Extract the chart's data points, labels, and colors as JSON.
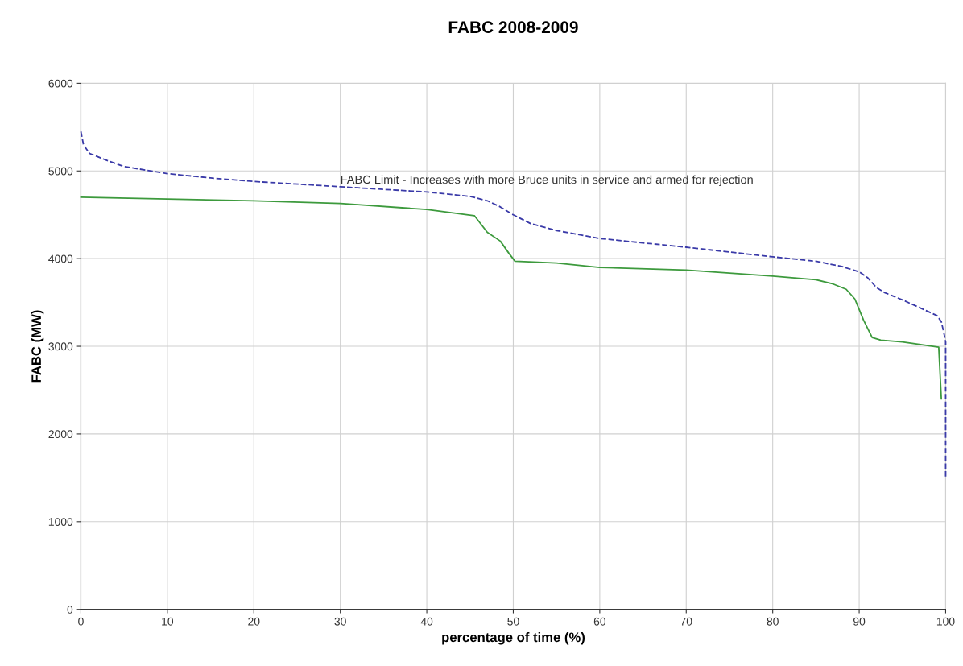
{
  "chart_data": {
    "type": "line",
    "title": "FABC 2008-2009",
    "xlabel": "percentage of time (%)",
    "ylabel": "FABC (MW)",
    "xlim": [
      0,
      100
    ],
    "xticks": [
      0,
      10,
      20,
      30,
      40,
      50,
      60,
      70,
      80,
      90,
      100
    ],
    "ylim": [
      0,
      6000
    ],
    "yticks": [
      0,
      1000,
      2000,
      3000,
      4000,
      5000,
      6000
    ],
    "grid": true,
    "legend": false,
    "annotations": [
      "FABC Limit - Increases with more Bruce units in service and armed for rejection"
    ],
    "series": [
      {
        "color": "#3a3aa8",
        "line_style": "dashed",
        "x": [
          0,
          0.3,
          1,
          3,
          5,
          10,
          15,
          20,
          30,
          40,
          45,
          47,
          48.5,
          50,
          52,
          55,
          60,
          70,
          80,
          85,
          88,
          90,
          91,
          92,
          93,
          95,
          97,
          99,
          99.5,
          99.8,
          100,
          100
        ],
        "values": [
          5450,
          5300,
          5200,
          5120,
          5050,
          4970,
          4920,
          4880,
          4820,
          4760,
          4710,
          4660,
          4590,
          4500,
          4400,
          4320,
          4230,
          4130,
          4020,
          3970,
          3910,
          3850,
          3780,
          3670,
          3610,
          3530,
          3440,
          3350,
          3280,
          3150,
          3050,
          1500
        ]
      },
      {
        "color": "#3d9a3d",
        "line_style": "solid",
        "x": [
          0,
          10,
          20,
          30,
          40,
          45.5,
          47,
          48.5,
          49.5,
          50.2,
          55,
          60,
          70,
          80,
          85,
          87,
          88.5,
          89.5,
          90.5,
          91.5,
          92.5,
          95,
          99.2,
          99.5
        ],
        "values": [
          4700,
          4680,
          4660,
          4630,
          4560,
          4490,
          4300,
          4200,
          4060,
          3970,
          3950,
          3900,
          3870,
          3800,
          3760,
          3710,
          3650,
          3540,
          3300,
          3100,
          3070,
          3050,
          2990,
          2400
        ]
      }
    ]
  }
}
